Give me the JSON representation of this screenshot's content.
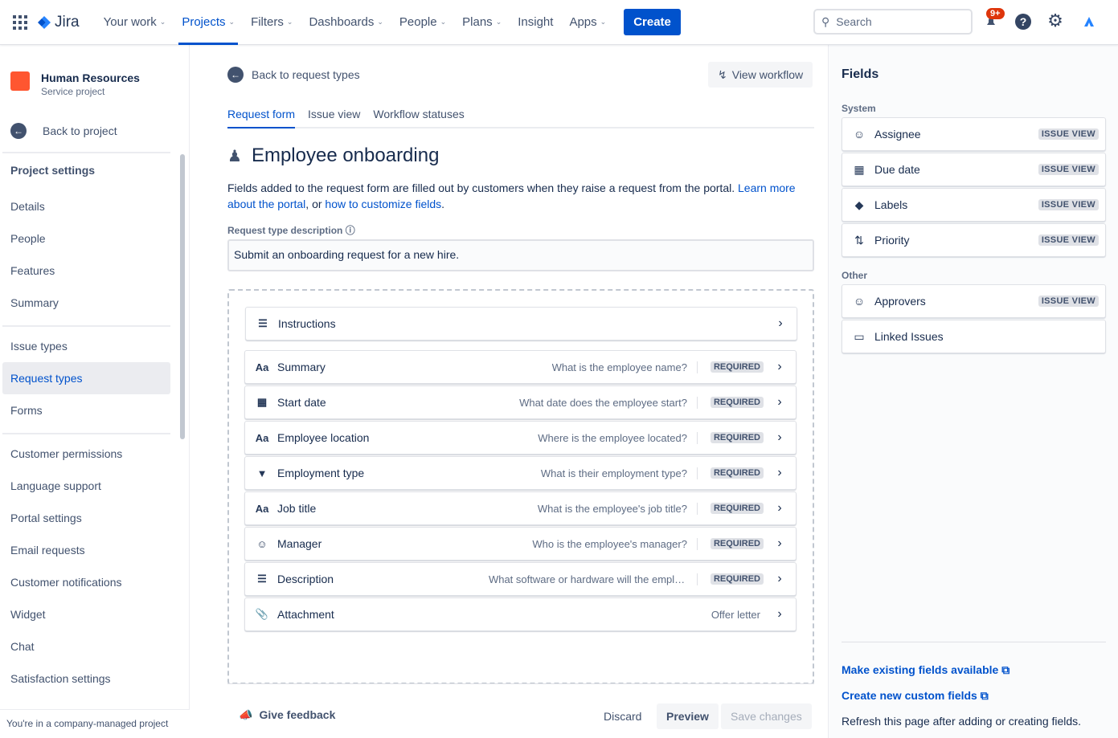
{
  "topnav": {
    "brand": "Jira",
    "items": [
      {
        "label": "Your work",
        "chevron": true
      },
      {
        "label": "Projects",
        "chevron": true,
        "active": true
      },
      {
        "label": "Filters",
        "chevron": true
      },
      {
        "label": "Dashboards",
        "chevron": true
      },
      {
        "label": "People",
        "chevron": true
      },
      {
        "label": "Plans",
        "chevron": true
      },
      {
        "label": "Insight",
        "chevron": false
      },
      {
        "label": "Apps",
        "chevron": true
      }
    ],
    "create": "Create",
    "search_placeholder": "Search",
    "notifications": "9+"
  },
  "sidebar": {
    "project_name": "Human Resources",
    "project_type": "Service project",
    "back": "Back to project",
    "heading": "Project settings",
    "items": [
      "Details",
      "People",
      "Features",
      "Summary",
      "Issue types",
      "Request types",
      "Forms",
      "Customer permissions",
      "Language support",
      "Portal settings",
      "Email requests",
      "Customer notifications",
      "Widget",
      "Chat",
      "Satisfaction settings"
    ],
    "selected": "Request types",
    "footer": "You're in a company-managed project"
  },
  "main": {
    "back": "Back to request types",
    "view_workflow": "View workflow",
    "tabs": [
      "Request form",
      "Issue view",
      "Workflow statuses"
    ],
    "title": "Employee onboarding",
    "intro": "Fields added to the request form are filled out by customers when they raise a request from the portal. ",
    "link1": "Learn more about the portal",
    "mid": ", or ",
    "link2": "how to customize fields",
    "end": ".",
    "desc_label": "Request type description",
    "desc_value": "Submit an onboarding request for a new hire.",
    "fields": [
      {
        "icon": "lines-icon",
        "label": "Instructions",
        "hint": "",
        "required": false
      },
      {
        "icon": "text-icon",
        "label": "Summary",
        "hint": "What is the employee name?",
        "required": true
      },
      {
        "icon": "calendar-icon",
        "label": "Start date",
        "hint": "What date does the employee start?",
        "required": true
      },
      {
        "icon": "text-icon",
        "label": "Employee location",
        "hint": "Where is the employee located?",
        "required": true
      },
      {
        "icon": "dropdown-icon",
        "label": "Employment type",
        "hint": "What is their employment type?",
        "required": true
      },
      {
        "icon": "text-icon",
        "label": "Job title",
        "hint": "What is the employee's job title?",
        "required": true
      },
      {
        "icon": "user-icon",
        "label": "Manager",
        "hint": "Who is the employee's manager?",
        "required": true
      },
      {
        "icon": "lines-icon",
        "label": "Description",
        "hint": "What software or hardware will the employee need?",
        "required": true
      },
      {
        "icon": "paperclip-icon",
        "label": "Attachment",
        "hint": "Offer letter",
        "required": false
      }
    ],
    "required_label": "REQUIRED",
    "feedback": "Give feedback",
    "discard": "Discard",
    "preview": "Preview",
    "save": "Save changes"
  },
  "fields_panel": {
    "title": "Fields",
    "system_label": "System",
    "system": [
      {
        "icon": "user-icon",
        "label": "Assignee",
        "tag": "ISSUE VIEW"
      },
      {
        "icon": "calendar-icon",
        "label": "Due date",
        "tag": "ISSUE VIEW"
      },
      {
        "icon": "tag-icon",
        "label": "Labels",
        "tag": "ISSUE VIEW"
      },
      {
        "icon": "priority-icon",
        "label": "Priority",
        "tag": "ISSUE VIEW"
      }
    ],
    "other_label": "Other",
    "other": [
      {
        "icon": "user-icon",
        "label": "Approvers",
        "tag": "ISSUE VIEW"
      },
      {
        "icon": "link-icon",
        "label": "Linked Issues",
        "tag": ""
      }
    ],
    "link1": "Make existing fields available",
    "link2": "Create new custom fields",
    "note": "Refresh this page after adding or creating fields."
  }
}
